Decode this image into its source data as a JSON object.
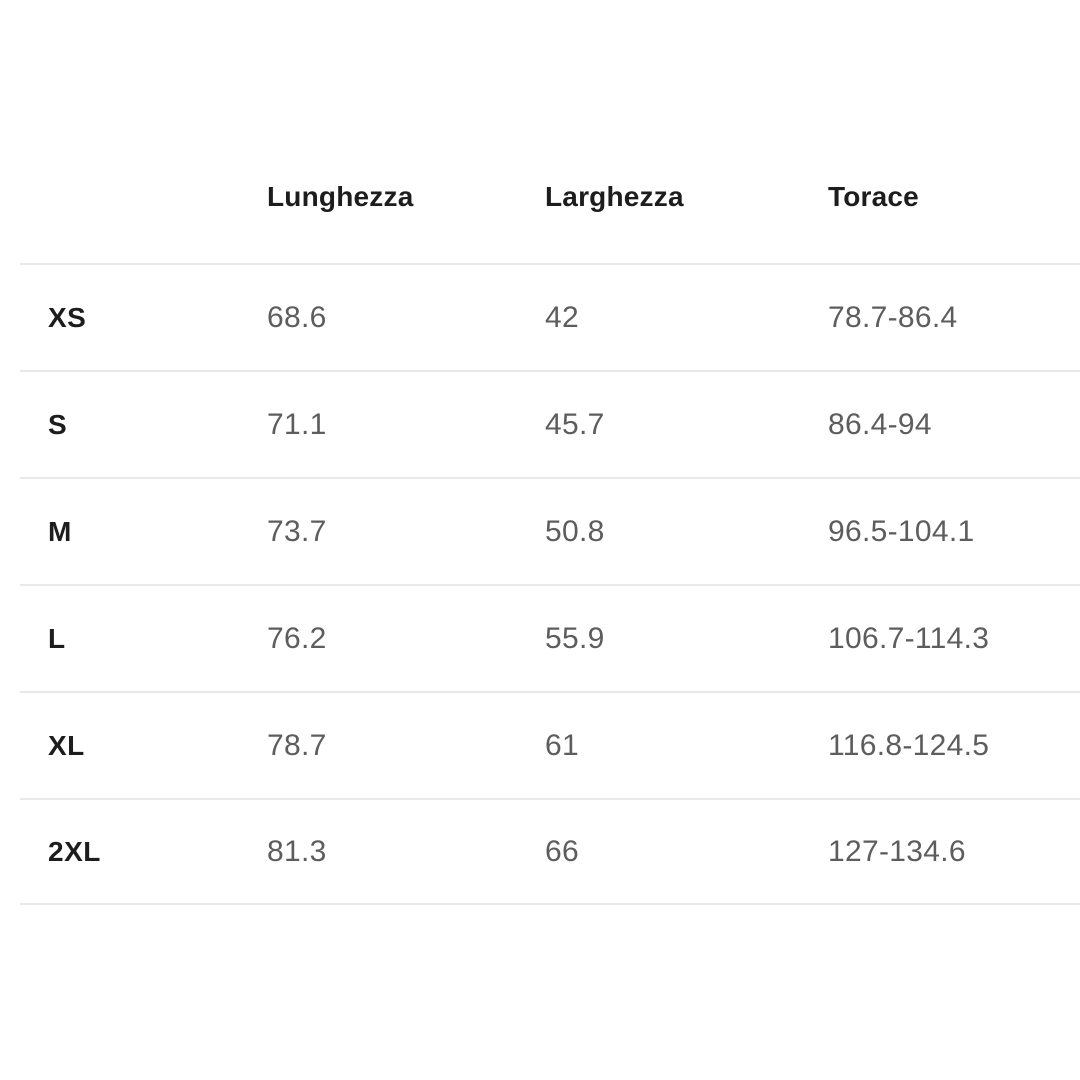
{
  "size_chart": {
    "columns": {
      "size": "",
      "length": "Lunghezza",
      "width": "Larghezza",
      "chest": "Torace"
    },
    "rows": [
      {
        "size": "XS",
        "length": "68.6",
        "width": "42",
        "chest": "78.7-86.4"
      },
      {
        "size": "S",
        "length": "71.1",
        "width": "45.7",
        "chest": "86.4-94"
      },
      {
        "size": "M",
        "length": "73.7",
        "width": "50.8",
        "chest": "96.5-104.1"
      },
      {
        "size": "L",
        "length": "76.2",
        "width": "55.9",
        "chest": "106.7-114.3"
      },
      {
        "size": "XL",
        "length": "78.7",
        "width": "61",
        "chest": "116.8-124.5"
      },
      {
        "size": "2XL",
        "length": "81.3",
        "width": "66",
        "chest": "127-134.6"
      }
    ],
    "colors": {
      "header_text": "#1d1d1d",
      "value_text": "#5d5d5d",
      "divider": "#e9e9e9",
      "background": "#ffffff"
    }
  }
}
